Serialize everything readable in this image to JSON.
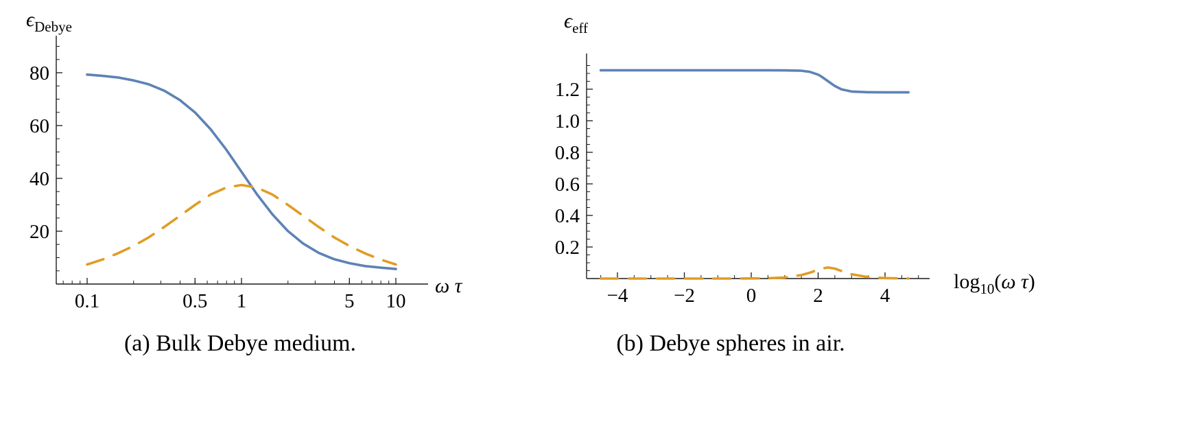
{
  "figure": {
    "captions": {
      "a": "(a) Bulk Debye medium.",
      "b": "(b) Debye spheres in air."
    }
  },
  "colors": {
    "real_part": "#5e82b5",
    "imaginary_part": "#e09c24",
    "axis": "#1a1a1a"
  },
  "chart_data": [
    {
      "id": "bulk-debye-medium",
      "type": "line",
      "caption": "(a) Bulk Debye medium.",
      "x_scale": "log10",
      "grid": false,
      "legend": "none",
      "xlabel": {
        "parts": [
          {
            "text": "ω τ",
            "italic": true
          }
        ]
      },
      "ylabel": {
        "parts": [
          {
            "text": "ϵ",
            "italic": true
          },
          {
            "text": "Debye",
            "sub": true
          }
        ]
      },
      "xlim": [
        0.063,
        16
      ],
      "ylim": [
        0,
        93
      ],
      "x_ticks": [
        {
          "x": 0.1,
          "label": "0.1"
        },
        {
          "x": 0.5,
          "label": "0.5"
        },
        {
          "x": 1,
          "label": "1"
        },
        {
          "x": 5,
          "label": "5"
        },
        {
          "x": 10,
          "label": "10"
        }
      ],
      "y_ticks": [
        {
          "y": 20,
          "label": "20"
        },
        {
          "y": 40,
          "label": "40"
        },
        {
          "y": 60,
          "label": "60"
        },
        {
          "y": 80,
          "label": "80"
        }
      ],
      "series": [
        {
          "name": "epsilon-real",
          "style": "solid",
          "color": "#5e82b5",
          "x": [
            0.1,
            0.126,
            0.158,
            0.2,
            0.251,
            0.316,
            0.398,
            0.501,
            0.631,
            0.794,
            1,
            1.259,
            1.585,
            1.995,
            2.512,
            3.162,
            3.981,
            5.012,
            6.31,
            7.943,
            10
          ],
          "y": [
            79.3,
            78.8,
            78.2,
            77.1,
            75.6,
            73.2,
            69.7,
            64.9,
            58.6,
            51,
            42.5,
            34,
            26.4,
            20.1,
            15.3,
            11.8,
            9.4,
            7.9,
            6.8,
            6.2,
            5.7
          ]
        },
        {
          "name": "epsilon-imaginary",
          "style": "dashed",
          "color": "#e09c24",
          "x": [
            0.1,
            0.126,
            0.158,
            0.2,
            0.251,
            0.316,
            0.398,
            0.501,
            0.631,
            0.794,
            1,
            1.259,
            1.585,
            1.995,
            2.512,
            3.162,
            3.981,
            5.012,
            6.31,
            7.943,
            10
          ],
          "y": [
            7.4,
            9.3,
            11.6,
            14.4,
            17.7,
            21.6,
            25.8,
            30,
            33.9,
            36.5,
            37.5,
            36.5,
            33.9,
            30,
            25.8,
            21.6,
            17.7,
            14.4,
            11.6,
            9.3,
            7.4
          ]
        }
      ]
    },
    {
      "id": "debye-spheres-in-air",
      "type": "line",
      "caption": "(b) Debye spheres in air.",
      "x_scale": "linear",
      "grid": false,
      "legend": "none",
      "xlabel": {
        "parts": [
          {
            "text": "log"
          },
          {
            "text": "10",
            "sub": true
          },
          {
            "text": "("
          },
          {
            "text": "ω τ",
            "italic": true
          },
          {
            "text": ")"
          }
        ]
      },
      "ylabel": {
        "parts": [
          {
            "text": "ϵ",
            "italic": true
          },
          {
            "text": "eff",
            "sub": true
          }
        ]
      },
      "xlim": [
        -5,
        5.3
      ],
      "ylim": [
        0,
        1.41
      ],
      "x_ticks": [
        {
          "x": -4,
          "label": "−4"
        },
        {
          "x": -2,
          "label": "−2"
        },
        {
          "x": 0,
          "label": "0"
        },
        {
          "x": 2,
          "label": "2"
        },
        {
          "x": 4,
          "label": "4"
        }
      ],
      "y_ticks": [
        {
          "y": 0.2,
          "label": "0.2"
        },
        {
          "y": 0.4,
          "label": "0.4"
        },
        {
          "y": 0.6,
          "label": "0.6"
        },
        {
          "y": 0.8,
          "label": "0.8"
        },
        {
          "y": 1.0,
          "label": "1.0"
        },
        {
          "y": 1.2,
          "label": "1.2"
        }
      ],
      "series": [
        {
          "name": "epsilon-eff-real",
          "style": "solid",
          "color": "#5e82b5",
          "x": [
            -4.5,
            -4,
            -3.5,
            -3,
            -2.5,
            -2,
            -1.5,
            -1,
            -0.5,
            0,
            0.5,
            1,
            1.5,
            1.75,
            2,
            2.1,
            2.3,
            2.5,
            2.7,
            3,
            3.5,
            4,
            4.5,
            4.7
          ],
          "y": [
            1.32,
            1.32,
            1.32,
            1.32,
            1.32,
            1.32,
            1.32,
            1.32,
            1.32,
            1.32,
            1.32,
            1.319,
            1.317,
            1.31,
            1.292,
            1.28,
            1.25,
            1.22,
            1.199,
            1.185,
            1.181,
            1.18,
            1.18,
            1.18
          ]
        },
        {
          "name": "epsilon-eff-imaginary",
          "style": "dashed",
          "color": "#e09c24",
          "x": [
            -4.5,
            -4,
            -3.5,
            -3,
            -2.5,
            -2,
            -1.5,
            -1,
            -0.5,
            0,
            0.5,
            1,
            1.5,
            1.75,
            2,
            2.1,
            2.3,
            2.5,
            2.7,
            3,
            3.5,
            4,
            4.5,
            4.7
          ],
          "y": [
            0,
            0,
            0,
            0,
            0,
            0,
            0,
            0,
            0,
            0.001,
            0.002,
            0.007,
            0.022,
            0.037,
            0.056,
            0.063,
            0.07,
            0.063,
            0.048,
            0.027,
            0.009,
            0.003,
            0.001,
            0.001
          ]
        }
      ]
    }
  ]
}
